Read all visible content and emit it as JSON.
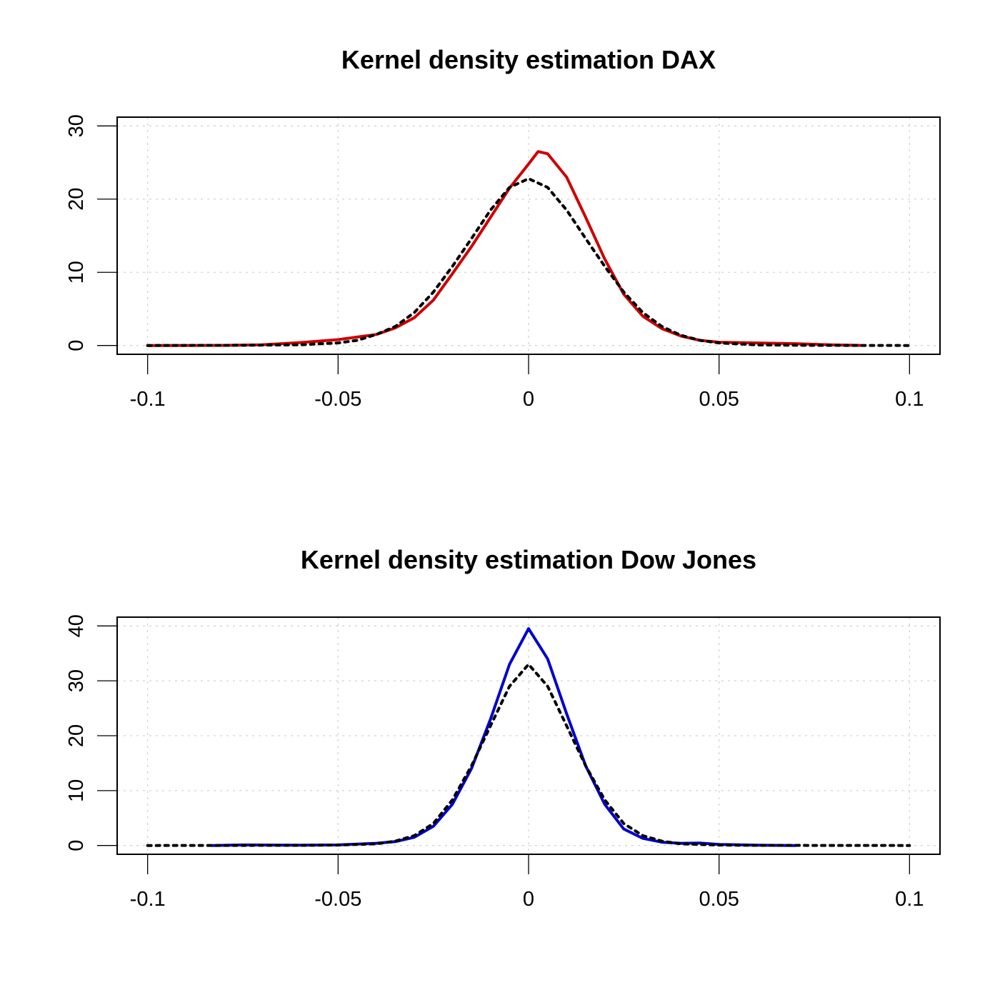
{
  "chart_data": [
    {
      "type": "line",
      "title": "Kernel density estimation DAX",
      "xlabel": "",
      "ylabel": "",
      "xlim": [
        -0.108,
        0.108
      ],
      "ylim": [
        -1.2,
        31.2
      ],
      "x_ticks": [
        -0.1,
        -0.05,
        0,
        0.05,
        0.1
      ],
      "x_tick_labels": [
        "-0.1",
        "-0.05",
        "0",
        "0.05",
        "0.1"
      ],
      "y_ticks": [
        0,
        10,
        20,
        30
      ],
      "y_tick_labels": [
        "0",
        "10",
        "20",
        "30"
      ],
      "grid": true,
      "series": [
        {
          "color": "#cc0000",
          "dash": "solid",
          "points": [
            [
              -0.1,
              0
            ],
            [
              -0.08,
              0.02
            ],
            [
              -0.07,
              0.1
            ],
            [
              -0.06,
              0.4
            ],
            [
              -0.05,
              0.8
            ],
            [
              -0.04,
              1.5
            ],
            [
              -0.035,
              2.4
            ],
            [
              -0.03,
              3.8
            ],
            [
              -0.025,
              6.2
            ],
            [
              -0.02,
              9.8
            ],
            [
              -0.015,
              13.5
            ],
            [
              -0.01,
              17.5
            ],
            [
              -0.005,
              21.5
            ],
            [
              0,
              24.8
            ],
            [
              0.0025,
              26.5
            ],
            [
              0.005,
              26.2
            ],
            [
              0.01,
              23.0
            ],
            [
              0.015,
              17.5
            ],
            [
              0.02,
              11.8
            ],
            [
              0.025,
              7.0
            ],
            [
              0.03,
              4.0
            ],
            [
              0.035,
              2.3
            ],
            [
              0.04,
              1.3
            ],
            [
              0.045,
              0.7
            ],
            [
              0.05,
              0.45
            ],
            [
              0.06,
              0.35
            ],
            [
              0.07,
              0.25
            ],
            [
              0.08,
              0.08
            ],
            [
              0.087,
              0.02
            ]
          ]
        },
        {
          "color": "#000000",
          "dash": "dotted",
          "points": [
            [
              -0.1,
              0
            ],
            [
              -0.075,
              0.03
            ],
            [
              -0.06,
              0.1
            ],
            [
              -0.05,
              0.35
            ],
            [
              -0.045,
              0.7
            ],
            [
              -0.04,
              1.5
            ],
            [
              -0.035,
              2.6
            ],
            [
              -0.03,
              4.5
            ],
            [
              -0.025,
              7.3
            ],
            [
              -0.02,
              10.8
            ],
            [
              -0.015,
              14.6
            ],
            [
              -0.01,
              18.5
            ],
            [
              -0.005,
              21.6
            ],
            [
              0,
              22.8
            ],
            [
              0.005,
              21.6
            ],
            [
              0.01,
              18.5
            ],
            [
              0.015,
              14.6
            ],
            [
              0.02,
              10.8
            ],
            [
              0.025,
              7.3
            ],
            [
              0.03,
              4.5
            ],
            [
              0.035,
              2.6
            ],
            [
              0.04,
              1.4
            ],
            [
              0.045,
              0.7
            ],
            [
              0.05,
              0.35
            ],
            [
              0.06,
              0.08
            ],
            [
              0.075,
              0.02
            ],
            [
              0.1,
              0
            ]
          ]
        }
      ]
    },
    {
      "type": "line",
      "title": "Kernel density estimation Dow Jones",
      "xlabel": "",
      "ylabel": "",
      "xlim": [
        -0.108,
        0.108
      ],
      "ylim": [
        -1.6,
        41.6
      ],
      "x_ticks": [
        -0.1,
        -0.05,
        0,
        0.05,
        0.1
      ],
      "x_tick_labels": [
        "-0.1",
        "-0.05",
        "0",
        "0.05",
        "0.1"
      ],
      "y_ticks": [
        0,
        10,
        20,
        30,
        40
      ],
      "y_tick_labels": [
        "0",
        "10",
        "20",
        "30",
        "40"
      ],
      "grid": true,
      "series": [
        {
          "color": "#0000cc",
          "dash": "solid",
          "points": [
            [
              -0.083,
              0
            ],
            [
              -0.075,
              0.1
            ],
            [
              -0.06,
              0.05
            ],
            [
              -0.05,
              0.1
            ],
            [
              -0.04,
              0.4
            ],
            [
              -0.035,
              0.7
            ],
            [
              -0.03,
              1.5
            ],
            [
              -0.025,
              3.5
            ],
            [
              -0.02,
              7.5
            ],
            [
              -0.015,
              14.0
            ],
            [
              -0.01,
              23.0
            ],
            [
              -0.005,
              33.0
            ],
            [
              0,
              39.5
            ],
            [
              0.005,
              34.0
            ],
            [
              0.01,
              24.0
            ],
            [
              0.015,
              14.5
            ],
            [
              0.02,
              7.5
            ],
            [
              0.025,
              3.0
            ],
            [
              0.03,
              1.3
            ],
            [
              0.035,
              0.6
            ],
            [
              0.04,
              0.4
            ],
            [
              0.045,
              0.45
            ],
            [
              0.05,
              0.2
            ],
            [
              0.06,
              0.05
            ],
            [
              0.07,
              0
            ]
          ]
        },
        {
          "color": "#000000",
          "dash": "dotted",
          "points": [
            [
              -0.1,
              0
            ],
            [
              -0.06,
              0.02
            ],
            [
              -0.05,
              0.08
            ],
            [
              -0.04,
              0.3
            ],
            [
              -0.035,
              0.8
            ],
            [
              -0.03,
              1.8
            ],
            [
              -0.025,
              4.0
            ],
            [
              -0.02,
              8.3
            ],
            [
              -0.015,
              14.5
            ],
            [
              -0.01,
              21.8
            ],
            [
              -0.005,
              29.0
            ],
            [
              0,
              33.0
            ],
            [
              0.005,
              29.0
            ],
            [
              0.01,
              21.8
            ],
            [
              0.015,
              14.5
            ],
            [
              0.02,
              8.3
            ],
            [
              0.025,
              4.0
            ],
            [
              0.03,
              1.8
            ],
            [
              0.035,
              0.8
            ],
            [
              0.04,
              0.3
            ],
            [
              0.05,
              0.08
            ],
            [
              0.06,
              0.02
            ],
            [
              0.1,
              0
            ]
          ]
        }
      ]
    }
  ]
}
